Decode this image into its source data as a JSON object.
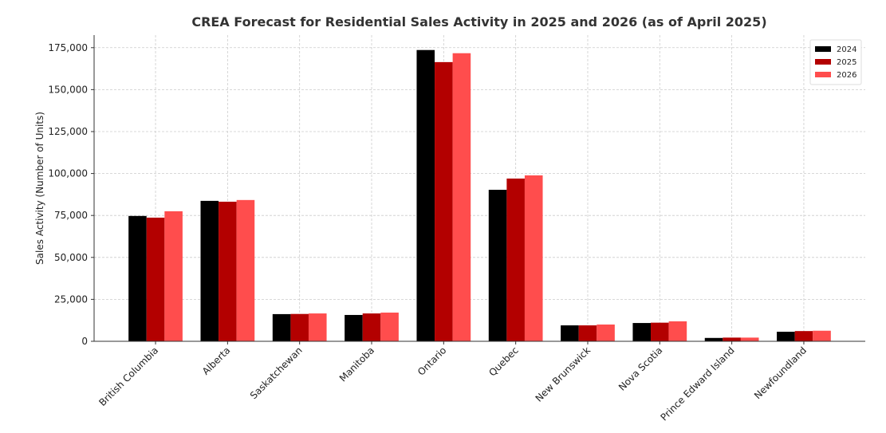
{
  "chart_data": {
    "type": "bar",
    "title": "CREA Forecast for Residential Sales Activity in 2025 and 2026 (as of April 2025)",
    "y_label": "Sales Activity (Number of Units)",
    "categories": [
      "British Columbia",
      "Alberta",
      "Saskatchewan",
      "Manitoba",
      "Ontario",
      "Quebec",
      "New Brunswick",
      "Nova Scotia",
      "Prince Edward Island",
      "Newfoundland"
    ],
    "series": [
      {
        "name": "2024",
        "color": "#000000",
        "values": [
          74700,
          83700,
          16200,
          15700,
          173600,
          90300,
          9500,
          10900,
          2000,
          5700
        ]
      },
      {
        "name": "2025",
        "color": "#b30000",
        "values": [
          73700,
          83200,
          16300,
          16600,
          166400,
          97000,
          9500,
          11100,
          2200,
          6100
        ]
      },
      {
        "name": "2026",
        "color": "#ff4d4d",
        "values": [
          77500,
          84200,
          16600,
          17100,
          171700,
          98900,
          10000,
          11900,
          2200,
          6300
        ]
      }
    ],
    "ylim": [
      0,
      182500
    ],
    "yticks": [
      0,
      {
        "value": 25000,
        "label": "25,000"
      },
      {
        "value": 50000,
        "label": "50,000"
      },
      {
        "value": 75000,
        "label": "75,000"
      },
      {
        "value": 100000,
        "label": "100,000"
      },
      {
        "value": 125000,
        "label": "125,000"
      },
      {
        "value": 150000,
        "label": "150,000"
      },
      {
        "value": 175000,
        "label": "175,000"
      }
    ],
    "grid": true,
    "legend": "upper-right"
  }
}
